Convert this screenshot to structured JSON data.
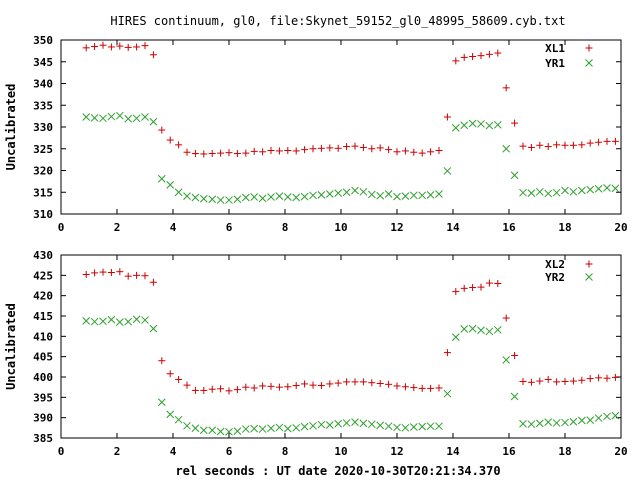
{
  "figure": {
    "title": "HIRES continuum, gl0, file:Skynet_59152_gl0_48995_58609.cyb.txt",
    "xlabel": "rel seconds : UT date 2020-10-30T20:21:34.370"
  },
  "colors": {
    "red": "#cc0000",
    "green": "#2ca02c",
    "axis": "#000000"
  },
  "chart_data": [
    {
      "type": "scatter",
      "title": "HIRES continuum, gl0, file:Skynet_59152_gl0_48995_58609.cyb.txt",
      "xlabel": "",
      "ylabel": "Uncalibrated",
      "xlim": [
        0,
        20
      ],
      "ylim": [
        310,
        350
      ],
      "xticks": [
        0,
        2,
        4,
        6,
        8,
        10,
        12,
        14,
        16,
        18,
        20
      ],
      "yticks": [
        310,
        315,
        320,
        325,
        330,
        335,
        340,
        345,
        350
      ],
      "grid": false,
      "legend_position": "top-right",
      "x": [
        0.9,
        1.2,
        1.5,
        1.8,
        2.1,
        2.4,
        2.7,
        3.0,
        3.3,
        3.6,
        3.9,
        4.2,
        4.5,
        4.8,
        5.1,
        5.4,
        5.7,
        6.0,
        6.3,
        6.6,
        6.9,
        7.2,
        7.5,
        7.8,
        8.1,
        8.4,
        8.7,
        9.0,
        9.3,
        9.6,
        9.9,
        10.2,
        10.5,
        10.8,
        11.1,
        11.4,
        11.7,
        12.0,
        12.3,
        12.6,
        12.9,
        13.2,
        13.5,
        13.8,
        14.1,
        14.4,
        14.7,
        15.0,
        15.3,
        15.6,
        15.9,
        16.2,
        16.5,
        16.8,
        17.1,
        17.4,
        17.7,
        18.0,
        18.3,
        18.6,
        18.9,
        19.2,
        19.5,
        19.8
      ],
      "series": [
        {
          "name": "XL1",
          "marker": "+",
          "color": "#cc0000",
          "values": [
            348.2,
            348.5,
            348.8,
            348.4,
            348.6,
            348.3,
            348.4,
            348.7,
            346.6,
            329.3,
            327.0,
            325.9,
            324.2,
            323.9,
            323.8,
            323.9,
            324.0,
            324.1,
            323.9,
            324.0,
            324.4,
            324.3,
            324.6,
            324.5,
            324.6,
            324.5,
            324.8,
            325.0,
            325.1,
            325.2,
            325.1,
            325.5,
            325.6,
            325.3,
            325.0,
            325.2,
            324.8,
            324.3,
            324.5,
            324.2,
            324.0,
            324.3,
            324.6,
            332.3,
            345.2,
            346.0,
            346.2,
            346.4,
            346.7,
            347.0,
            339.0,
            330.9,
            325.6,
            325.3,
            325.8,
            325.5,
            325.9,
            325.8,
            325.8,
            325.9,
            326.3,
            326.5,
            326.7,
            326.7
          ]
        },
        {
          "name": "YR1",
          "marker": "x",
          "color": "#2ca02c",
          "values": [
            332.3,
            332.1,
            332.0,
            332.4,
            332.6,
            331.9,
            332.0,
            332.3,
            331.2,
            318.1,
            316.7,
            315.0,
            314.1,
            313.8,
            313.5,
            313.4,
            313.2,
            313.2,
            313.4,
            313.8,
            313.9,
            313.6,
            313.9,
            314.1,
            313.9,
            313.8,
            314.0,
            314.3,
            314.4,
            314.6,
            314.8,
            315.0,
            315.4,
            315.1,
            314.5,
            314.2,
            314.6,
            314.0,
            314.1,
            314.3,
            314.3,
            314.4,
            314.6,
            319.9,
            329.8,
            330.4,
            330.8,
            330.7,
            330.3,
            330.5,
            325.0,
            318.9,
            314.9,
            314.8,
            315.1,
            314.7,
            314.9,
            315.4,
            315.1,
            315.4,
            315.6,
            315.8,
            316.0,
            315.9
          ]
        }
      ]
    },
    {
      "type": "scatter",
      "title": "",
      "xlabel": "rel seconds : UT date 2020-10-30T20:21:34.370",
      "ylabel": "Uncalibrated",
      "xlim": [
        0,
        20
      ],
      "ylim": [
        385,
        430
      ],
      "xticks": [
        0,
        2,
        4,
        6,
        8,
        10,
        12,
        14,
        16,
        18,
        20
      ],
      "yticks": [
        385,
        390,
        395,
        400,
        405,
        410,
        415,
        420,
        425,
        430
      ],
      "grid": false,
      "legend_position": "top-right",
      "x": [
        0.9,
        1.2,
        1.5,
        1.8,
        2.1,
        2.4,
        2.7,
        3.0,
        3.3,
        3.6,
        3.9,
        4.2,
        4.5,
        4.8,
        5.1,
        5.4,
        5.7,
        6.0,
        6.3,
        6.6,
        6.9,
        7.2,
        7.5,
        7.8,
        8.1,
        8.4,
        8.7,
        9.0,
        9.3,
        9.6,
        9.9,
        10.2,
        10.5,
        10.8,
        11.1,
        11.4,
        11.7,
        12.0,
        12.3,
        12.6,
        12.9,
        13.2,
        13.5,
        13.8,
        14.1,
        14.4,
        14.7,
        15.0,
        15.3,
        15.6,
        15.9,
        16.2,
        16.5,
        16.8,
        17.1,
        17.4,
        17.7,
        18.0,
        18.3,
        18.6,
        18.9,
        19.2,
        19.5,
        19.8
      ],
      "series": [
        {
          "name": "XL2",
          "marker": "+",
          "color": "#cc0000",
          "values": [
            425.2,
            425.6,
            425.8,
            425.7,
            425.9,
            424.8,
            425.0,
            424.9,
            423.3,
            404.0,
            400.8,
            399.4,
            398.0,
            396.7,
            396.7,
            397.0,
            397.1,
            396.6,
            396.9,
            397.5,
            397.3,
            397.8,
            397.7,
            397.5,
            397.6,
            397.9,
            398.3,
            398.0,
            397.9,
            398.3,
            398.5,
            398.8,
            398.8,
            398.8,
            398.6,
            398.4,
            398.2,
            397.8,
            397.6,
            397.4,
            397.2,
            397.2,
            397.3,
            406.0,
            421.0,
            421.8,
            422.0,
            422.1,
            423.1,
            423.0,
            414.5,
            405.3,
            398.9,
            398.7,
            399.0,
            399.4,
            398.8,
            398.9,
            399.0,
            399.2,
            399.6,
            399.8,
            399.7,
            399.9
          ]
        },
        {
          "name": "YR2",
          "marker": "x",
          "color": "#2ca02c",
          "values": [
            413.8,
            413.6,
            413.7,
            414.1,
            413.5,
            413.6,
            414.2,
            414.0,
            411.9,
            393.8,
            390.8,
            389.5,
            388.0,
            387.4,
            386.9,
            386.9,
            386.6,
            386.5,
            386.7,
            387.2,
            387.3,
            387.2,
            387.4,
            387.6,
            387.3,
            387.5,
            387.8,
            388.0,
            388.3,
            388.2,
            388.5,
            388.7,
            388.9,
            388.6,
            388.4,
            388.1,
            387.9,
            387.6,
            387.5,
            387.7,
            387.8,
            387.9,
            387.9,
            395.9,
            409.8,
            411.8,
            411.9,
            411.5,
            411.2,
            411.6,
            404.2,
            395.2,
            388.5,
            388.4,
            388.6,
            388.9,
            388.7,
            388.8,
            389.0,
            389.3,
            389.4,
            389.9,
            390.3,
            390.5
          ]
        }
      ]
    }
  ]
}
